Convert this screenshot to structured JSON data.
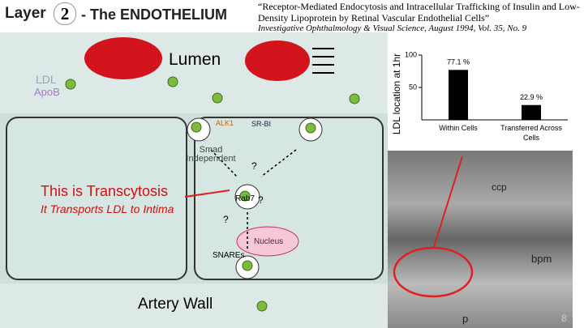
{
  "header": {
    "layer": "Layer",
    "number": "2",
    "title": "- The ENDOTHELIUM"
  },
  "citation": {
    "title": "“Receptor-Mediated Endocytosis and Intracellular Trafficking of Insulin and Low-Density Lipoprotein by Retinal Vascular Endothelial Cells”",
    "source": "Investigative Ophthalmology & Visual Science, August 1994, Vol. 35, No. 9"
  },
  "diagram": {
    "lumen": "Lumen",
    "legend": [
      "LDL",
      "ApoB"
    ],
    "receptors": [
      "ALK1",
      "SR-BI"
    ],
    "smad": "Smad Independent",
    "rab": "Rab7",
    "questions": [
      "?",
      "?",
      "?"
    ],
    "nucleus": "Nucleus",
    "snares": "SNAREs",
    "wall": "Artery Wall"
  },
  "callout": {
    "line1": "This is Transcytosis",
    "line2": "It Transports LDL to Intima"
  },
  "micrograph": {
    "labels": [
      "ccp",
      "bpm",
      "p"
    ]
  },
  "page_number": "8",
  "chart_data": {
    "type": "bar",
    "ylabel": "LDL location at 1hr",
    "categories": [
      "Within Cells",
      "Transferred Across Cells"
    ],
    "values": [
      77.1,
      22.9
    ],
    "value_labels": [
      "77.1 %",
      "22.9 %"
    ],
    "color": "#000000",
    "ylim": [
      0,
      100
    ],
    "yticks": [
      50,
      100
    ]
  }
}
